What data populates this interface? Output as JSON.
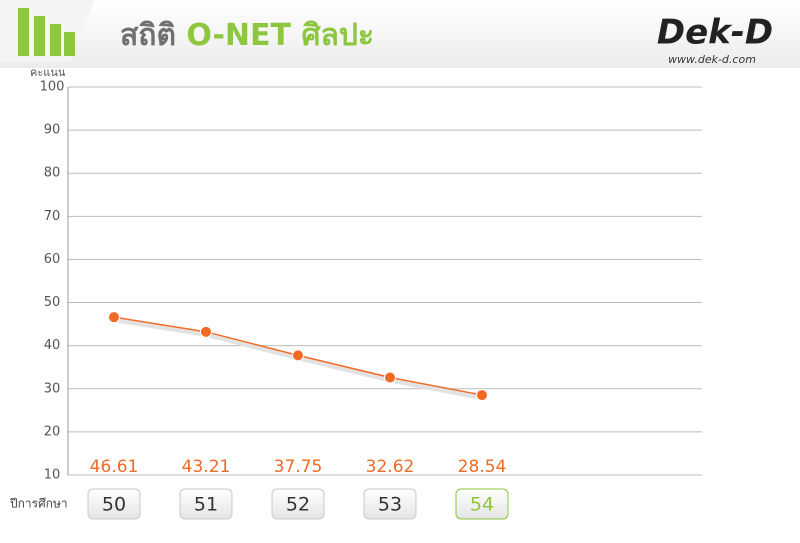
{
  "chart_data": {
    "type": "line",
    "title": [
      "สถิติ",
      "O-NET ศิลปะ"
    ],
    "logo": {
      "name": "Dek-D",
      "url": "www.dek-d.com"
    },
    "y_label": "คะแนน",
    "x_label": "ปีการศึกษา",
    "categories": [
      "50",
      "51",
      "52",
      "53",
      "54"
    ],
    "values": [
      46.61,
      43.21,
      37.75,
      32.62,
      28.54
    ],
    "color": "#f06a24",
    "highlight_index": 4,
    "highlight_color": "#8dc63f",
    "ylim": [
      10,
      100
    ],
    "yticks": [
      10,
      20,
      30,
      40,
      50,
      60,
      70,
      80,
      90,
      100
    ],
    "grid": true
  }
}
